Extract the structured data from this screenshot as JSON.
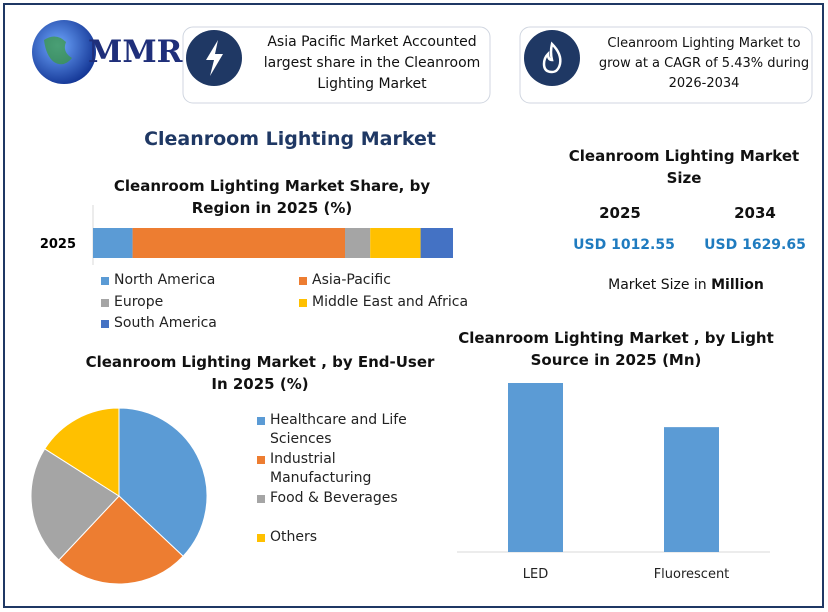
{
  "header": {
    "logo": "MMR",
    "info": [
      "Asia Pacific Market Accounted largest share in the Cleanroom Lighting Market",
      "Cleanroom Lighting Market to grow at a CAGR of 5.43% during 2026-2034"
    ]
  },
  "title": "Cleanroom Lighting Market",
  "market_size": {
    "title": "Cleanroom Lighting Market Size",
    "years": [
      "2025",
      "2034"
    ],
    "values": [
      "USD 1012.55",
      "USD 1629.65"
    ],
    "note": "Market Size in",
    "unit": "Million"
  },
  "chart_data": [
    {
      "type": "stacked-bar",
      "orientation": "horizontal",
      "title": "Cleanroom Lighting Market Share, by Region in 2025 (%)",
      "categories": [
        "2025"
      ],
      "series": [
        {
          "name": "North America",
          "color": "#5b9bd5",
          "values": [
            11
          ]
        },
        {
          "name": "Asia-Pacific",
          "color": "#ed7d31",
          "values": [
            59
          ]
        },
        {
          "name": "Europe",
          "color": "#a5a5a5",
          "values": [
            7
          ]
        },
        {
          "name": "Middle East and Africa",
          "color": "#ffc000",
          "values": [
            14
          ]
        },
        {
          "name": "South America",
          "color": "#4472c4",
          "values": [
            9
          ]
        }
      ]
    },
    {
      "type": "pie",
      "title": "Cleanroom Lighting Market , by End-User In 2025 (%)",
      "categories": [
        "Healthcare and Life Sciences",
        "Industrial Manufacturing",
        "Food & Beverages",
        "Others"
      ],
      "values": [
        37,
        25,
        22,
        16
      ],
      "colors": [
        "#5b9bd5",
        "#ed7d31",
        "#a5a5a5",
        "#ffc000"
      ]
    },
    {
      "type": "bar",
      "title": "Cleanroom Lighting Market , by Light Source in 2025 (Mn)",
      "categories": [
        "LED",
        "Fluorescent"
      ],
      "values": [
        582,
        430
      ],
      "color": "#5b9bd5"
    }
  ]
}
